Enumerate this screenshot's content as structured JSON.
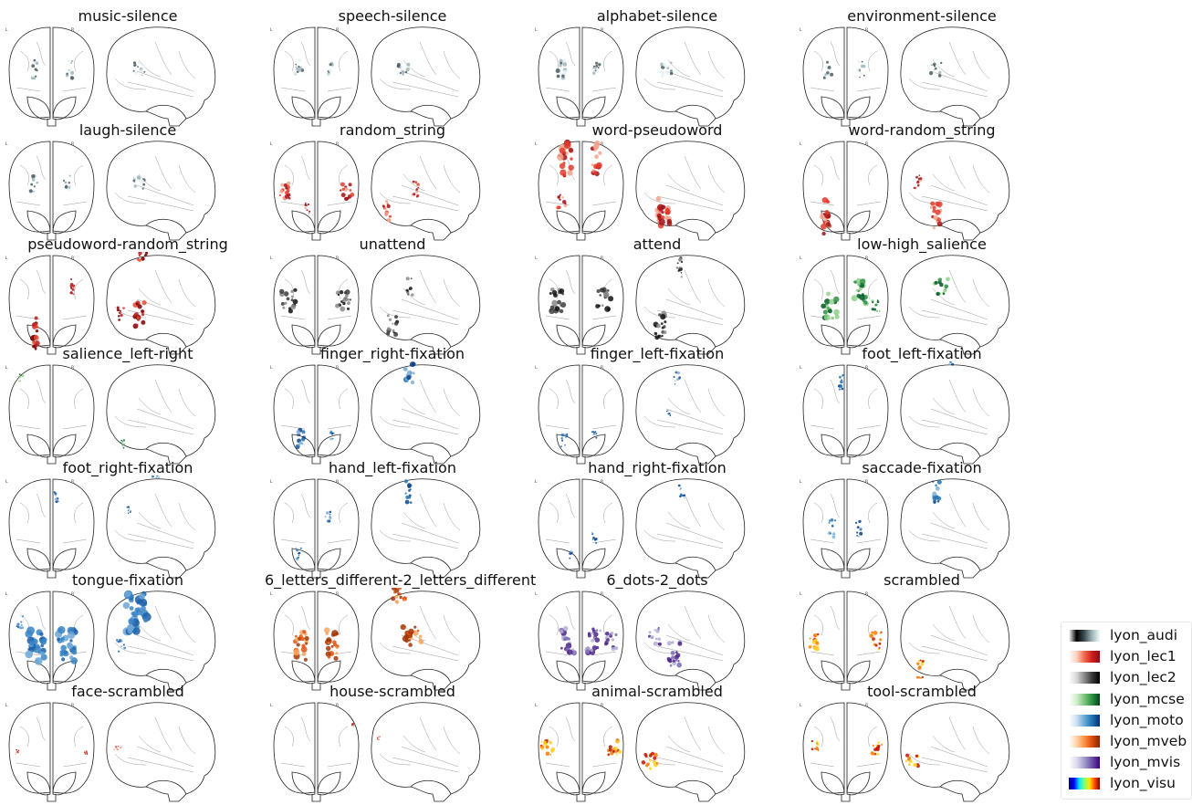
{
  "panels": [
    {
      "title": "music-silence",
      "cmap": "lyon_audi",
      "blobs": [
        [
          "f",
          -1,
          0.42,
          0.4,
          0.18,
          0.22
        ],
        [
          "f",
          1,
          0.42,
          0.4,
          0.18,
          0.22
        ],
        [
          "s",
          0,
          0.42,
          0.4,
          0.3,
          0.16
        ]
      ]
    },
    {
      "title": "speech-silence",
      "cmap": "lyon_audi",
      "blobs": [
        [
          "f",
          -1,
          0.42,
          0.4,
          0.2,
          0.22
        ],
        [
          "f",
          1,
          0.42,
          0.35,
          0.16,
          0.18
        ],
        [
          "s",
          0,
          0.42,
          0.42,
          0.33,
          0.16
        ]
      ]
    },
    {
      "title": "alphabet-silence",
      "cmap": "lyon_audi",
      "blobs": [
        [
          "f",
          -1,
          0.42,
          0.45,
          0.22,
          0.25
        ],
        [
          "f",
          1,
          0.42,
          0.35,
          0.16,
          0.18
        ],
        [
          "s",
          0,
          0.42,
          0.45,
          0.33,
          0.18
        ]
      ]
    },
    {
      "title": "environment-silence",
      "cmap": "lyon_audi",
      "blobs": [
        [
          "f",
          -1,
          0.42,
          0.4,
          0.18,
          0.2
        ],
        [
          "f",
          1,
          0.42,
          0.35,
          0.16,
          0.18
        ],
        [
          "s",
          0,
          0.42,
          0.35,
          0.28,
          0.15
        ]
      ]
    },
    {
      "title": "laugh-silence",
      "cmap": "lyon_audi",
      "blobs": [
        [
          "f",
          -1,
          0.42,
          0.4,
          0.18,
          0.2
        ],
        [
          "f",
          1,
          0.42,
          0.35,
          0.16,
          0.18
        ],
        [
          "s",
          0,
          0.42,
          0.4,
          0.3,
          0.15
        ]
      ]
    },
    {
      "title": "random_string",
      "cmap": "lyon_lec1",
      "blobs": [
        [
          "f",
          -1,
          0.5,
          0.72,
          0.3,
          0.22
        ],
        [
          "f",
          1,
          0.5,
          0.72,
          0.3,
          0.22
        ],
        [
          "f",
          -1,
          0.7,
          0.18,
          0.14,
          0.14
        ],
        [
          "s",
          0,
          0.72,
          0.72,
          0.18,
          0.25
        ],
        [
          "s",
          0,
          0.48,
          0.18,
          0.14,
          0.18
        ]
      ]
    },
    {
      "title": "word-pseudoword",
      "cmap": "lyon_lec1",
      "blobs": [
        [
          "f",
          -1,
          0.15,
          0.35,
          0.3,
          0.4
        ],
        [
          "f",
          1,
          0.15,
          0.35,
          0.25,
          0.35
        ],
        [
          "f",
          -1,
          0.6,
          0.45,
          0.2,
          0.2
        ],
        [
          "s",
          0,
          0.75,
          0.5,
          0.35,
          0.35
        ]
      ]
    },
    {
      "title": "word-random_string",
      "cmap": "lyon_lec1",
      "blobs": [
        [
          "f",
          -1,
          0.78,
          0.45,
          0.2,
          0.4
        ],
        [
          "s",
          0,
          0.78,
          0.35,
          0.3,
          0.3
        ],
        [
          "s",
          0,
          -0.3,
          0.45,
          0.2,
          0.35
        ],
        [
          "s",
          0,
          0.4,
          0.7,
          0.18,
          0.15
        ]
      ]
    },
    {
      "title": "pseudoword-random_string",
      "cmap": "lyon_lec2",
      "blobs": [
        [
          "f",
          -1,
          0.82,
          0.4,
          0.18,
          0.4
        ],
        [
          "f",
          1,
          0.3,
          0.5,
          0.1,
          0.2
        ],
        [
          "s",
          0,
          0.6,
          0.4,
          0.25,
          0.3
        ],
        [
          "s",
          0,
          -0.1,
          0.35,
          0.25,
          0.25
        ],
        [
          "s",
          0,
          0.6,
          0.75,
          0.15,
          0.15
        ]
      ]
    },
    {
      "title": "unattend",
      "cmap": "lyon_lec2_dark",
      "blobs": [
        [
          "f",
          -1,
          0.45,
          0.65,
          0.35,
          0.25
        ],
        [
          "f",
          1,
          0.45,
          0.65,
          0.35,
          0.25
        ],
        [
          "s",
          0,
          0.72,
          0.62,
          0.25,
          0.25
        ],
        [
          "s",
          0,
          0.3,
          0.3,
          0.15,
          0.2
        ]
      ]
    },
    {
      "title": "attend",
      "cmap": "lyon_lec2_dark",
      "blobs": [
        [
          "f",
          -1,
          0.45,
          0.55,
          0.35,
          0.3
        ],
        [
          "f",
          1,
          0.45,
          0.55,
          0.35,
          0.3
        ],
        [
          "s",
          0,
          0.72,
          0.55,
          0.28,
          0.3
        ],
        [
          "s",
          0,
          0.1,
          0.2,
          0.12,
          0.25
        ]
      ]
    },
    {
      "title": "low-high_salience",
      "cmap": "lyon_mcse",
      "blobs": [
        [
          "f",
          -1,
          0.5,
          0.35,
          0.35,
          0.3
        ],
        [
          "f",
          1,
          0.35,
          0.35,
          0.35,
          0.3
        ],
        [
          "f",
          1,
          0.5,
          0.72,
          0.2,
          0.15
        ],
        [
          "s",
          0,
          0.3,
          0.25,
          0.35,
          0.2
        ],
        [
          "s",
          0,
          -0.55,
          0.5,
          0.15,
          0.2
        ]
      ]
    },
    {
      "title": "salience_left-right",
      "cmap": "lyon_mcse",
      "blobs": [
        [
          "f",
          -1,
          0.1,
          0.72,
          0.12,
          0.08
        ],
        [
          "s",
          0,
          0.82,
          0.72,
          0.1,
          0.1
        ]
      ]
    },
    {
      "title": "finger_right-fixation",
      "cmap": "lyon_moto",
      "blobs": [
        [
          "f",
          -1,
          0.78,
          0.35,
          0.18,
          0.25
        ],
        [
          "f",
          1,
          0.72,
          0.38,
          0.12,
          0.15
        ],
        [
          "s",
          0,
          0.0,
          0.3,
          0.25,
          0.35
        ]
      ]
    },
    {
      "title": "finger_left-fixation",
      "cmap": "lyon_moto",
      "blobs": [
        [
          "f",
          -1,
          0.78,
          0.38,
          0.16,
          0.15
        ],
        [
          "f",
          1,
          0.72,
          0.3,
          0.12,
          0.1
        ],
        [
          "s",
          0,
          0.1,
          0.25,
          0.15,
          0.15
        ],
        [
          "s",
          0,
          0.5,
          0.4,
          0.1,
          0.1
        ]
      ]
    },
    {
      "title": "foot_left-fixation",
      "cmap": "lyon_moto",
      "blobs": [
        [
          "f",
          -1,
          0.15,
          0.08,
          0.12,
          0.2
        ],
        [
          "s",
          0,
          -0.1,
          0.08,
          0.2,
          0.12
        ]
      ]
    },
    {
      "title": "foot_right-fixation",
      "cmap": "lyon_moto",
      "blobs": [
        [
          "f",
          1,
          0.15,
          0.1,
          0.12,
          0.15
        ],
        [
          "s",
          0,
          -0.1,
          0.08,
          0.2,
          0.12
        ],
        [
          "s",
          0,
          0.3,
          0.6,
          0.1,
          0.1
        ]
      ]
    },
    {
      "title": "hand_left-fixation",
      "cmap": "lyon_moto",
      "blobs": [
        [
          "f",
          -1,
          0.78,
          0.4,
          0.15,
          0.15
        ],
        [
          "f",
          1,
          0.38,
          0.25,
          0.15,
          0.15
        ],
        [
          "s",
          0,
          0.1,
          0.32,
          0.15,
          0.25
        ]
      ]
    },
    {
      "title": "hand_right-fixation",
      "cmap": "lyon_moto",
      "blobs": [
        [
          "f",
          -1,
          0.78,
          0.2,
          0.12,
          0.1
        ],
        [
          "f",
          1,
          0.6,
          0.3,
          0.12,
          0.15
        ],
        [
          "s",
          0,
          0.1,
          0.15,
          0.15,
          0.15
        ]
      ]
    },
    {
      "title": "saccade-fixation",
      "cmap": "lyon_moto",
      "blobs": [
        [
          "f",
          -1,
          0.5,
          0.3,
          0.15,
          0.2
        ],
        [
          "f",
          1,
          0.5,
          0.3,
          0.15,
          0.2
        ],
        [
          "s",
          0,
          0.1,
          0.35,
          0.18,
          0.3
        ]
      ]
    },
    {
      "title": "tongue-fixation",
      "cmap": "lyon_moto_light",
      "blobs": [
        [
          "f",
          -1,
          0.55,
          0.35,
          0.45,
          0.4
        ],
        [
          "f",
          1,
          0.55,
          0.35,
          0.45,
          0.4
        ],
        [
          "f",
          -1,
          0.3,
          0.75,
          0.15,
          0.15
        ],
        [
          "s",
          0,
          0.2,
          0.45,
          0.55,
          0.45
        ],
        [
          "s",
          0,
          0.55,
          0.75,
          0.2,
          0.15
        ]
      ]
    },
    {
      "title": "6_letters_different-2_letters_different",
      "cmap": "lyon_mveb",
      "blobs": [
        [
          "f",
          -1,
          0.55,
          0.35,
          0.3,
          0.35
        ],
        [
          "f",
          1,
          0.55,
          0.35,
          0.3,
          0.35
        ],
        [
          "s",
          0,
          0.45,
          0.25,
          0.45,
          0.25
        ],
        [
          "s",
          0,
          0.0,
          0.5,
          0.3,
          0.2
        ]
      ]
    },
    {
      "title": "6_dots-2_dots",
      "cmap": "lyon_mvis",
      "blobs": [
        [
          "f",
          -1,
          0.5,
          0.3,
          0.35,
          0.3
        ],
        [
          "f",
          1,
          0.5,
          0.3,
          0.35,
          0.3
        ],
        [
          "f",
          1,
          0.5,
          0.7,
          0.3,
          0.2
        ],
        [
          "s",
          0,
          0.65,
          0.3,
          0.3,
          0.3
        ],
        [
          "s",
          0,
          0.45,
          0.65,
          0.3,
          0.2
        ]
      ]
    },
    {
      "title": "scrambled",
      "cmap": "lyon_visu",
      "blobs": [
        [
          "f",
          -1,
          0.5,
          0.72,
          0.3,
          0.2
        ],
        [
          "f",
          1,
          0.5,
          0.72,
          0.3,
          0.2
        ],
        [
          "s",
          0,
          0.82,
          0.65,
          0.15,
          0.25
        ]
      ]
    },
    {
      "title": "face-scrambled",
      "cmap": "lyon_lec1",
      "blobs": [
        [
          "f",
          -1,
          0.5,
          0.82,
          0.08,
          0.05
        ],
        [
          "f",
          1,
          0.5,
          0.82,
          0.08,
          0.05
        ],
        [
          "s",
          0,
          0.45,
          0.82,
          0.2,
          0.05
        ]
      ]
    },
    {
      "title": "house-scrambled",
      "cmap": "lyon_lec1",
      "blobs": [
        [
          "f",
          1,
          0.2,
          0.88,
          0.04,
          0.04
        ],
        [
          "s",
          0,
          0.35,
          0.88,
          0.06,
          0.04
        ]
      ]
    },
    {
      "title": "animal-scrambled",
      "cmap": "lyon_visu",
      "blobs": [
        [
          "f",
          -1,
          0.45,
          0.8,
          0.3,
          0.18
        ],
        [
          "f",
          1,
          0.45,
          0.8,
          0.3,
          0.18
        ],
        [
          "s",
          0,
          0.6,
          0.75,
          0.35,
          0.18
        ]
      ]
    },
    {
      "title": "tool-scrambled",
      "cmap": "lyon_visu",
      "blobs": [
        [
          "f",
          -1,
          0.45,
          0.75,
          0.2,
          0.15
        ],
        [
          "f",
          1,
          0.45,
          0.75,
          0.25,
          0.18
        ],
        [
          "s",
          0,
          0.6,
          0.8,
          0.3,
          0.15
        ]
      ]
    }
  ],
  "orientation": {
    "left": "L",
    "right": "R"
  },
  "colormaps": {
    "lyon_audi": [
      "#000000",
      "#4a5a60",
      "#9fb6bb",
      "#e7f2f2"
    ],
    "lyon_lec1": [
      "#fde0d9",
      "#f4a28b",
      "#e23b2a",
      "#a31116"
    ],
    "lyon_lec2": [
      "#fde0d9",
      "#e34a33",
      "#b91c1c",
      "#7f0000"
    ],
    "lyon_lec2_dark": [
      "#d9d9d9",
      "#8a8a8a",
      "#3d3d3d",
      "#111111"
    ],
    "lyon_mcse": [
      "#e4f5e0",
      "#8fd18a",
      "#2d8f43",
      "#005a26"
    ],
    "lyon_moto": [
      "#dceaf7",
      "#7fb0d8",
      "#2373b5",
      "#0b3f8a"
    ],
    "lyon_moto_light": [
      "#cfe2f2",
      "#6ba6d6",
      "#3a85c6",
      "#1c5fa8"
    ],
    "lyon_mveb": [
      "#fee6cf",
      "#fca55c",
      "#e2530f",
      "#a63603"
    ],
    "lyon_mvis": [
      "#efedf5",
      "#b3aed5",
      "#7c68b3",
      "#4b2787"
    ],
    "lyon_visu": [
      "#fff7a8",
      "#ffd022",
      "#ff7a00",
      "#c21500"
    ]
  },
  "legend": {
    "items": [
      {
        "label": "lyon_audi",
        "colors": [
          "#ffffff",
          "#000000",
          "#3a4c52",
          "#9fb6bb",
          "#f2fbfb"
        ]
      },
      {
        "label": "lyon_lec1",
        "colors": [
          "#ffffff",
          "#fbd2c3",
          "#f26b4d",
          "#cf1d1d",
          "#8b0d0d"
        ]
      },
      {
        "label": "lyon_lec2",
        "colors": [
          "#ffffff",
          "#d8d8d8",
          "#8a8a8a",
          "#3a3a3a",
          "#000000"
        ]
      },
      {
        "label": "lyon_mcse",
        "colors": [
          "#ffffff",
          "#d3efcd",
          "#7cc57b",
          "#2d8f43",
          "#00441b"
        ]
      },
      {
        "label": "lyon_moto",
        "colors": [
          "#ffffff",
          "#cfe0f1",
          "#6aaad6",
          "#2171b5",
          "#08306b"
        ]
      },
      {
        "label": "lyon_mveb",
        "colors": [
          "#ffffff",
          "#fdd5ad",
          "#fd9242",
          "#dd4c0d",
          "#7f2704"
        ]
      },
      {
        "label": "lyon_mvis",
        "colors": [
          "#ffffff",
          "#dedcee",
          "#a39ccc",
          "#6a51a3",
          "#3f007d"
        ]
      },
      {
        "label": "lyon_visu",
        "colors": [
          "#00007f",
          "#0000ff",
          "#00e5ff",
          "#7dff7a",
          "#ffe600",
          "#ff4800",
          "#7f0000"
        ]
      }
    ]
  }
}
